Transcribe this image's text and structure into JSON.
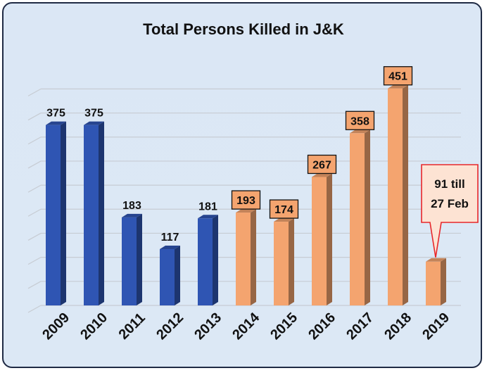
{
  "chart_data": {
    "type": "bar",
    "title": "Total Persons Killed in J&K",
    "xlabel": "",
    "ylabel": "",
    "categories": [
      "2009",
      "2010",
      "2011",
      "2012",
      "2013",
      "2014",
      "2015",
      "2016",
      "2017",
      "2018",
      "2019"
    ],
    "values": [
      375,
      375,
      183,
      117,
      181,
      193,
      174,
      267,
      358,
      451,
      91
    ],
    "data_labels": [
      "375",
      "375",
      "183",
      "117",
      "181",
      "193",
      "174",
      "267",
      "358",
      "451",
      ""
    ],
    "boxed_labels": [
      false,
      false,
      false,
      false,
      false,
      true,
      true,
      true,
      true,
      true,
      false
    ],
    "bar_colors": [
      "#2f55b3",
      "#2f55b3",
      "#2f55b3",
      "#2f55b3",
      "#2f55b3",
      "#f4a46f",
      "#f4a46f",
      "#f4a46f",
      "#f4a46f",
      "#f4a46f",
      "#f4a46f"
    ],
    "callout": {
      "category": "2019",
      "lines": [
        "91 till",
        "27 Feb"
      ]
    },
    "ylim": [
      0,
      500
    ],
    "grid": true,
    "legend": "none",
    "colors": {
      "blue_bar": "#2f55b3",
      "orange_bar": "#f4a46f",
      "callout_border": "#e8272a",
      "callout_fill": "#fde3d3",
      "background": "#dbe7f5"
    }
  }
}
